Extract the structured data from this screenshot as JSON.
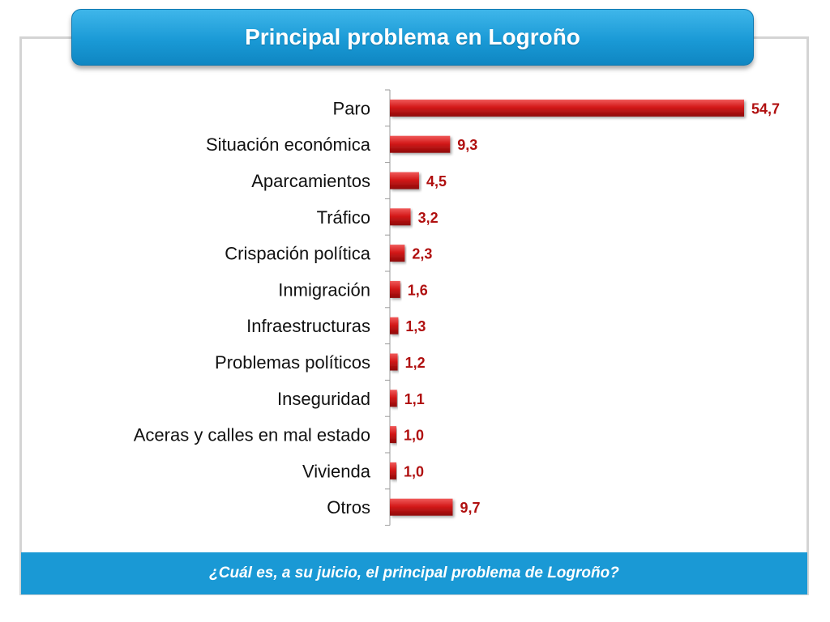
{
  "header": {
    "title": "Principal problema en Logroño"
  },
  "footer": {
    "question": "¿Cuál es, a su juicio, el principal problema de Logroño?"
  },
  "chart_data": {
    "type": "bar",
    "orientation": "horizontal",
    "title": "Principal problema en Logroño",
    "categories": [
      "Paro",
      "Situación económica",
      "Aparcamientos",
      "Tráfico",
      "Crispación política",
      "Inmigración",
      "Infraestructuras",
      "Problemas políticos",
      "Inseguridad",
      "Aceras y calles en mal estado",
      "Vivienda",
      "Otros"
    ],
    "values": [
      54.7,
      9.3,
      4.5,
      3.2,
      2.3,
      1.6,
      1.3,
      1.2,
      1.1,
      1.0,
      1.0,
      9.7
    ],
    "value_labels": [
      "54,7",
      "9,3",
      "4,5",
      "3,2",
      "2,3",
      "1,6",
      "1,3",
      "1,2",
      "1,1",
      "1,0",
      "1,0",
      "9,7"
    ],
    "bar_color": "#cc1414",
    "label_color": "#b01010",
    "xlim": [
      0,
      60
    ],
    "grid": false,
    "legend": "none"
  }
}
